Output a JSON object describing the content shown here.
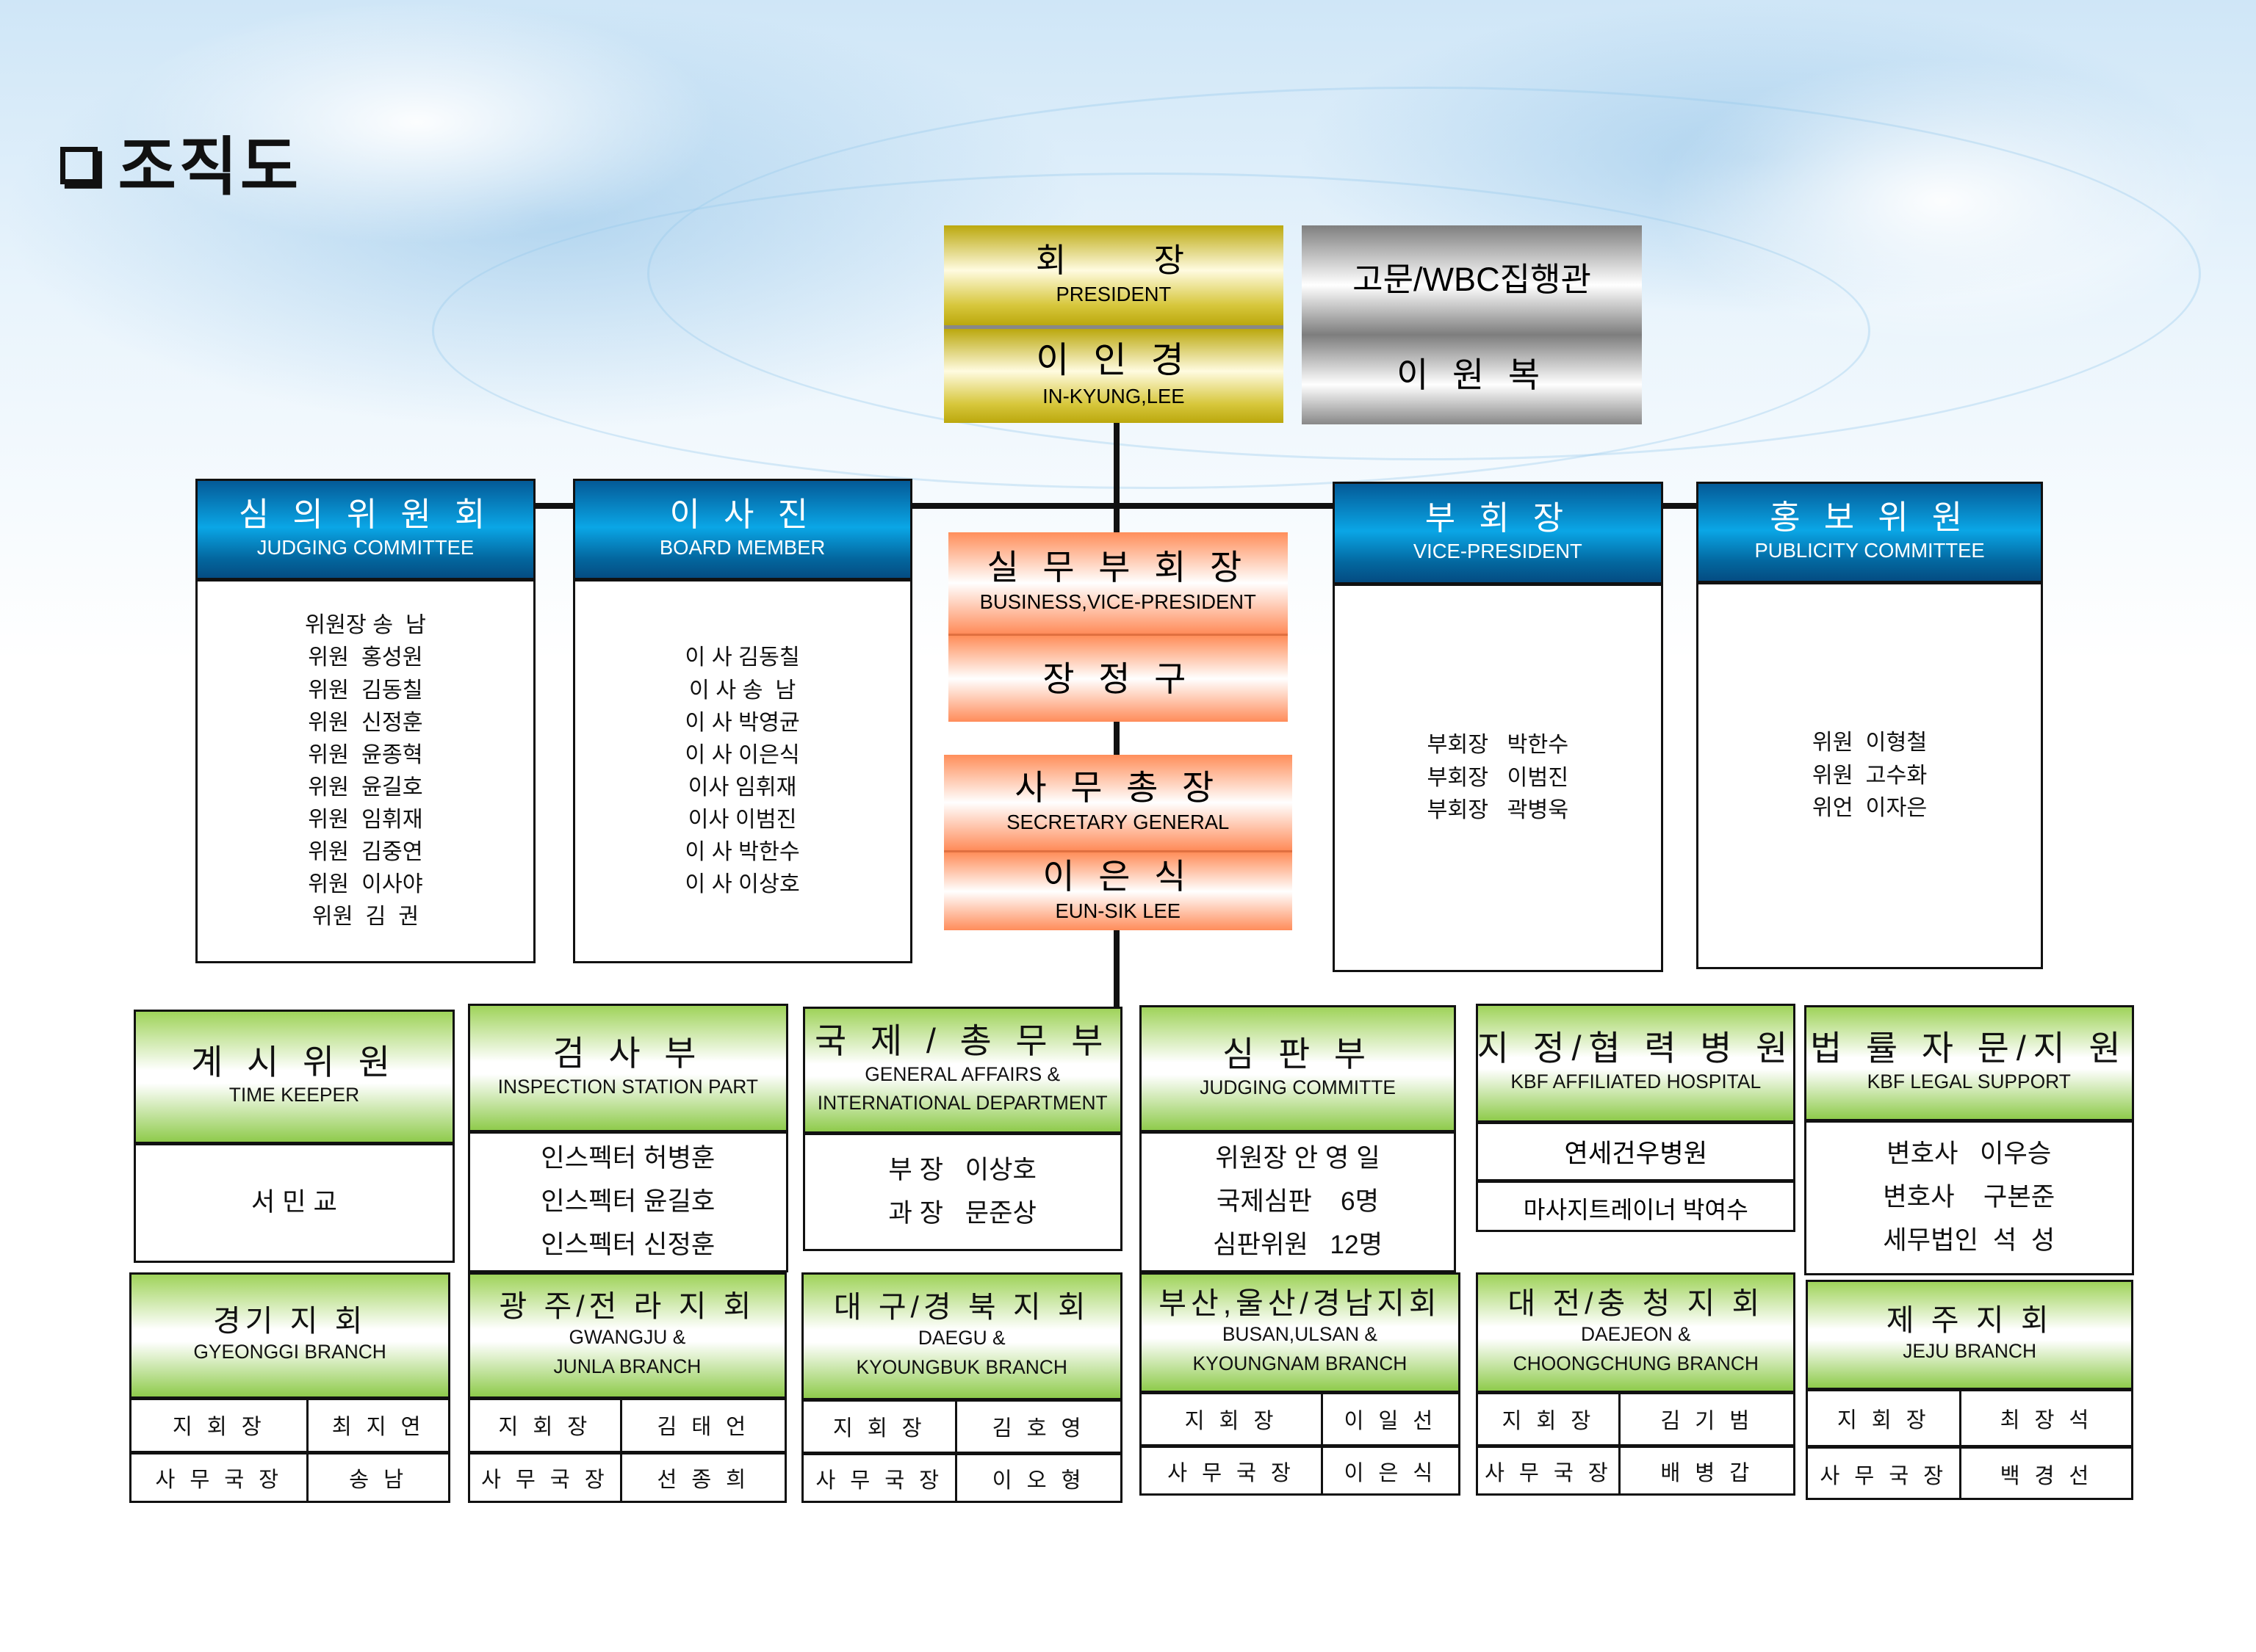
{
  "page_title": "조직도",
  "colors": {
    "committee_header": "#0aa6e6",
    "department_header": "#8fcb4c",
    "president": "#bba80d",
    "advisor": "#7f7f7f",
    "executive": "#ff8c5a"
  },
  "president": {
    "title_kr": "회　　장",
    "title_en": "PRESIDENT",
    "name_kr": "이 인 경",
    "name_en": "IN-KYUNG,LEE"
  },
  "advisor": {
    "title": "고문/WBC집행관",
    "name": "이 원 복"
  },
  "business_vp": {
    "title_kr": "실 무 부 회 장",
    "title_en": "BUSINESS,VICE-PRESIDENT",
    "name": "장 정 구"
  },
  "secretary_general": {
    "title_kr": "사 무 총 장",
    "title_en": "SECRETARY GENERAL",
    "name_kr": "이 은 식",
    "name_en": "EUN-SIK LEE"
  },
  "committees": [
    {
      "title_kr": "심 의 위 원 회",
      "title_en": "JUDGING COMMITTEE",
      "members": [
        "위원장 송  남",
        "위원  홍성원",
        "위원  김동칠",
        "위원  신정훈",
        "위원  윤종혁",
        "위원  윤길호",
        "위원  임휘재",
        "위원  김중연",
        "위원  이사야",
        "위원  김  권"
      ]
    },
    {
      "title_kr": "이 사 진",
      "title_en": "BOARD MEMBER",
      "members": [
        "이 사 김동칠",
        "이 사 송  남",
        "이 사 박영균",
        "이 사 이은식",
        "이사 임휘재",
        "이사 이범진",
        "이 사 박한수",
        "이 사 이상호"
      ]
    },
    {
      "title_kr": "부 회 장",
      "title_en": "VICE-PRESIDENT",
      "members": [
        "부회장   박한수",
        "부회장   이범진",
        "부회장   곽병욱"
      ]
    },
    {
      "title_kr": "홍 보 위 원",
      "title_en": "PUBLICITY COMMITTEE",
      "members": [
        "위원  이형철",
        "위원  고수화",
        "위언  이자은"
      ]
    }
  ],
  "departments": [
    {
      "title_kr": "계 시 위 원",
      "title_en": [
        "TIME KEEPER"
      ],
      "members": [
        "서 민 교"
      ]
    },
    {
      "title_kr": "검 사 부",
      "title_en": [
        "INSPECTION STATION PART"
      ],
      "members": [
        "인스펙터 허병훈",
        "인스펙터 윤길호",
        "인스펙터 신정훈"
      ]
    },
    {
      "title_kr": "국 제 / 총 무 부",
      "title_en": [
        "GENERAL AFFAIRS &",
        "INTERNATIONAL DEPARTMENT"
      ],
      "members": [
        "부 장   이상호",
        "과 장   문준상"
      ]
    },
    {
      "title_kr": "심 판 부",
      "title_en": [
        "JUDGING COMMITTE"
      ],
      "members": [
        "위원장 안 영 일",
        "국제심판    6명",
        "심판위원   12명"
      ]
    },
    {
      "title_kr": "지 정/협 력 병 원",
      "title_en": [
        "KBF AFFILIATED HOSPITAL"
      ],
      "members": [
        "연세건우병원",
        "마사지트레이너 박여수"
      ]
    },
    {
      "title_kr": "법 률 자 문/지 원",
      "title_en": [
        "KBF LEGAL SUPPORT"
      ],
      "members": [
        "변호사   이우승",
        "변호사    구본준",
        "세무법인  석  성"
      ]
    }
  ],
  "branches": [
    {
      "title_kr": "경기 지 회",
      "title_en": [
        "GYEONGGI BRANCH"
      ],
      "rows": [
        [
          "지 회 장",
          "최 지 연"
        ],
        [
          "사 무 국 장",
          "송  남"
        ]
      ]
    },
    {
      "title_kr": "광 주/전 라 지 회",
      "title_en": [
        "GWANGJU &",
        "JUNLA BRANCH"
      ],
      "rows": [
        [
          "지 회 장",
          "김 태 언"
        ],
        [
          "사 무 국 장",
          "선 종 희"
        ]
      ]
    },
    {
      "title_kr": "대 구/경 북 지 회",
      "title_en": [
        "DAEGU &",
        "KYOUNGBUK BRANCH"
      ],
      "rows": [
        [
          "지 회 장",
          "김 호 영"
        ],
        [
          "사 무 국 장",
          "이 오 형"
        ]
      ]
    },
    {
      "title_kr": "부산,울산/경남지회",
      "title_en": [
        "BUSAN,ULSAN &",
        "KYOUNGNAM BRANCH"
      ],
      "rows": [
        [
          "지 회 장",
          "이 일 선"
        ],
        [
          "사 무 국 장",
          "이 은 식"
        ]
      ]
    },
    {
      "title_kr": "대 전/충 청 지 회",
      "title_en": [
        "DAEJEON &",
        "CHOONGCHUNG BRANCH"
      ],
      "rows": [
        [
          "지 회 장",
          "김 기 범"
        ],
        [
          "사 무 국 장",
          "배 병 갑"
        ]
      ]
    },
    {
      "title_kr": "제 주 지 회",
      "title_en": [
        "JEJU BRANCH"
      ],
      "rows": [
        [
          "지 회 장",
          "최 장 석"
        ],
        [
          "사 무 국 장",
          "백 경 선"
        ]
      ]
    }
  ]
}
